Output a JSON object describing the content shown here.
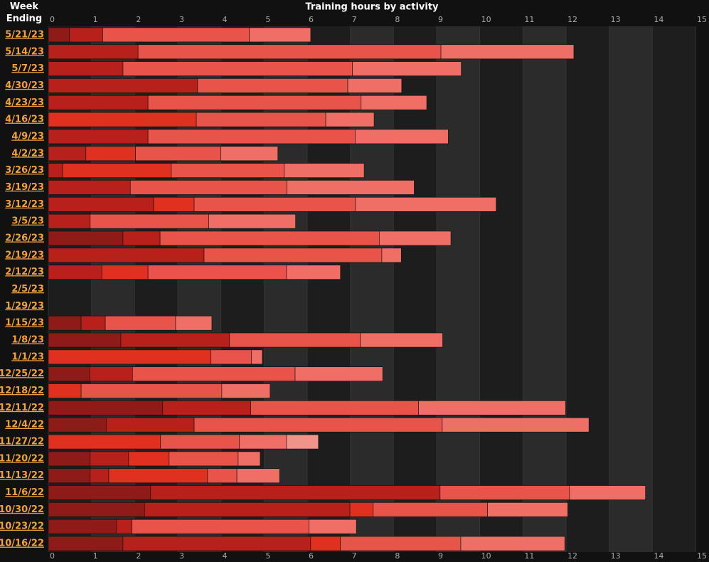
{
  "chart_data": {
    "type": "stacked-bar-horizontal",
    "title": "Training hours by activity",
    "category_header": "Week Ending",
    "xlim": [
      0,
      15
    ],
    "xticks": [
      0,
      1,
      2,
      3,
      4,
      5,
      6,
      7,
      8,
      9,
      10,
      11,
      12,
      13,
      14,
      15
    ],
    "rows": [
      {
        "week": "5/21/23",
        "values": [
          0.49,
          0.77,
          3.4,
          1.42
        ],
        "colors": [
          "#8e1b17",
          "#b8201c",
          "#e8534a",
          "#ef6f66"
        ]
      },
      {
        "week": "5/14/23",
        "values": [
          2.08,
          7.02,
          3.08
        ],
        "colors": [
          "#b8201c",
          "#e8534a",
          "#ef6f66"
        ]
      },
      {
        "week": "5/7/23",
        "values": [
          1.73,
          5.32,
          2.52
        ],
        "colors": [
          "#b8201c",
          "#e8534a",
          "#ef6f66"
        ]
      },
      {
        "week": "4/30/23",
        "values": [
          3.46,
          3.48,
          1.25
        ],
        "colors": [
          "#b8201c",
          "#e8534a",
          "#ef6f66"
        ]
      },
      {
        "week": "4/23/23",
        "values": [
          2.31,
          4.94,
          1.52
        ],
        "colors": [
          "#b8201c",
          "#e8534a",
          "#ef6f66"
        ]
      },
      {
        "week": "4/16/23",
        "values": [
          3.43,
          3.0,
          1.12
        ],
        "colors": [
          "#e0301f",
          "#e8534a",
          "#ef6f66"
        ]
      },
      {
        "week": "4/9/23",
        "values": [
          2.31,
          4.8,
          2.16
        ],
        "colors": [
          "#b8201c",
          "#e8534a",
          "#ef6f66"
        ]
      },
      {
        "week": "4/2/23",
        "values": [
          0.87,
          1.15,
          1.98,
          1.32
        ],
        "colors": [
          "#b8201c",
          "#e0301f",
          "#e8534a",
          "#ef6f66"
        ]
      },
      {
        "week": "3/26/23",
        "values": [
          0.33,
          2.52,
          2.62,
          1.85
        ],
        "colors": [
          "#b8201c",
          "#e0301f",
          "#e8534a",
          "#ef6f66"
        ]
      },
      {
        "week": "3/19/23",
        "values": [
          1.9,
          3.63,
          2.95
        ],
        "colors": [
          "#b8201c",
          "#e8534a",
          "#ef6f66"
        ]
      },
      {
        "week": "3/12/23",
        "values": [
          2.44,
          0.94,
          3.74,
          3.26
        ],
        "colors": [
          "#b8201c",
          "#e0301f",
          "#e8534a",
          "#ef6f66"
        ]
      },
      {
        "week": "3/5/23",
        "values": [
          0.97,
          2.75,
          2.01
        ],
        "colors": [
          "#b8201c",
          "#e8534a",
          "#ef6f66"
        ]
      },
      {
        "week": "2/26/23",
        "values": [
          1.73,
          0.86,
          5.08,
          1.66
        ],
        "colors": [
          "#8e1b17",
          "#b8201c",
          "#e8534a",
          "#ef6f66"
        ]
      },
      {
        "week": "2/19/23",
        "values": [
          3.61,
          4.12,
          0.45
        ],
        "colors": [
          "#b8201c",
          "#e8534a",
          "#ef6f66"
        ]
      },
      {
        "week": "2/12/23",
        "values": [
          1.24,
          1.07,
          3.21,
          1.25
        ],
        "colors": [
          "#b8201c",
          "#e0301f",
          "#e8534a",
          "#ef6f66"
        ]
      },
      {
        "week": "2/5/23",
        "values": [],
        "colors": []
      },
      {
        "week": "1/29/23",
        "values": [],
        "colors": []
      },
      {
        "week": "1/15/23",
        "values": [
          0.76,
          0.56,
          1.63,
          0.84
        ],
        "colors": [
          "#8e1b17",
          "#b8201c",
          "#e8534a",
          "#ef6f66"
        ]
      },
      {
        "week": "1/8/23",
        "values": [
          1.68,
          2.52,
          3.03,
          1.91
        ],
        "colors": [
          "#8e1b17",
          "#b8201c",
          "#e8534a",
          "#ef6f66"
        ]
      },
      {
        "week": "1/1/23",
        "values": [
          3.77,
          0.94,
          0.25
        ],
        "colors": [
          "#e0301f",
          "#e8534a",
          "#ef6f66"
        ]
      },
      {
        "week": "12/25/22",
        "values": [
          0.96,
          0.99,
          3.77,
          2.03
        ],
        "colors": [
          "#8e1b17",
          "#b8201c",
          "#e8534a",
          "#ef6f66"
        ]
      },
      {
        "week": "12/18/22",
        "values": [
          0.76,
          3.26,
          1.12
        ],
        "colors": [
          "#e0301f",
          "#e8534a",
          "#ef6f66"
        ]
      },
      {
        "week": "12/11/22",
        "values": [
          2.65,
          2.04,
          3.89,
          3.41
        ],
        "colors": [
          "#8e1b17",
          "#b8201c",
          "#e8534a",
          "#ef6f66"
        ]
      },
      {
        "week": "12/4/22",
        "values": [
          1.34,
          2.04,
          5.75,
          3.4
        ],
        "colors": [
          "#8e1b17",
          "#b8201c",
          "#e8534a",
          "#ef6f66"
        ]
      },
      {
        "week": "11/27/22",
        "values": [
          2.6,
          1.83,
          1.09,
          0.74
        ],
        "colors": [
          "#e0301f",
          "#e8534a",
          "#ef6f66",
          "#f2938a"
        ]
      },
      {
        "week": "11/20/22",
        "values": [
          0.97,
          0.89,
          0.94,
          1.6,
          0.51
        ],
        "colors": [
          "#8e1b17",
          "#b8201c",
          "#e0301f",
          "#e8534a",
          "#ef6f66"
        ]
      },
      {
        "week": "11/13/22",
        "values": [
          0.97,
          0.43,
          2.29,
          0.68,
          0.99
        ],
        "colors": [
          "#8e1b17",
          "#b8201c",
          "#e0301f",
          "#e8534a",
          "#ef6f66"
        ]
      },
      {
        "week": "11/6/22",
        "values": [
          2.37,
          6.71,
          3.0,
          1.76
        ],
        "colors": [
          "#8e1b17",
          "#b8201c",
          "#e8534a",
          "#ef6f66"
        ]
      },
      {
        "week": "10/30/22",
        "values": [
          2.23,
          4.76,
          0.54,
          2.65,
          1.86
        ],
        "colors": [
          "#8e1b17",
          "#b8201c",
          "#e0301f",
          "#e8534a",
          "#ef6f66"
        ]
      },
      {
        "week": "10/23/22",
        "values": [
          1.58,
          0.36,
          4.1,
          1.1
        ],
        "colors": [
          "#8e1b17",
          "#b8201c",
          "#e8534a",
          "#ef6f66"
        ]
      },
      {
        "week": "10/16/22",
        "values": [
          1.73,
          4.35,
          0.69,
          2.79,
          2.41
        ],
        "colors": [
          "#8e1b17",
          "#b8201c",
          "#e0301f",
          "#e8534a",
          "#ef6f66"
        ]
      }
    ]
  }
}
